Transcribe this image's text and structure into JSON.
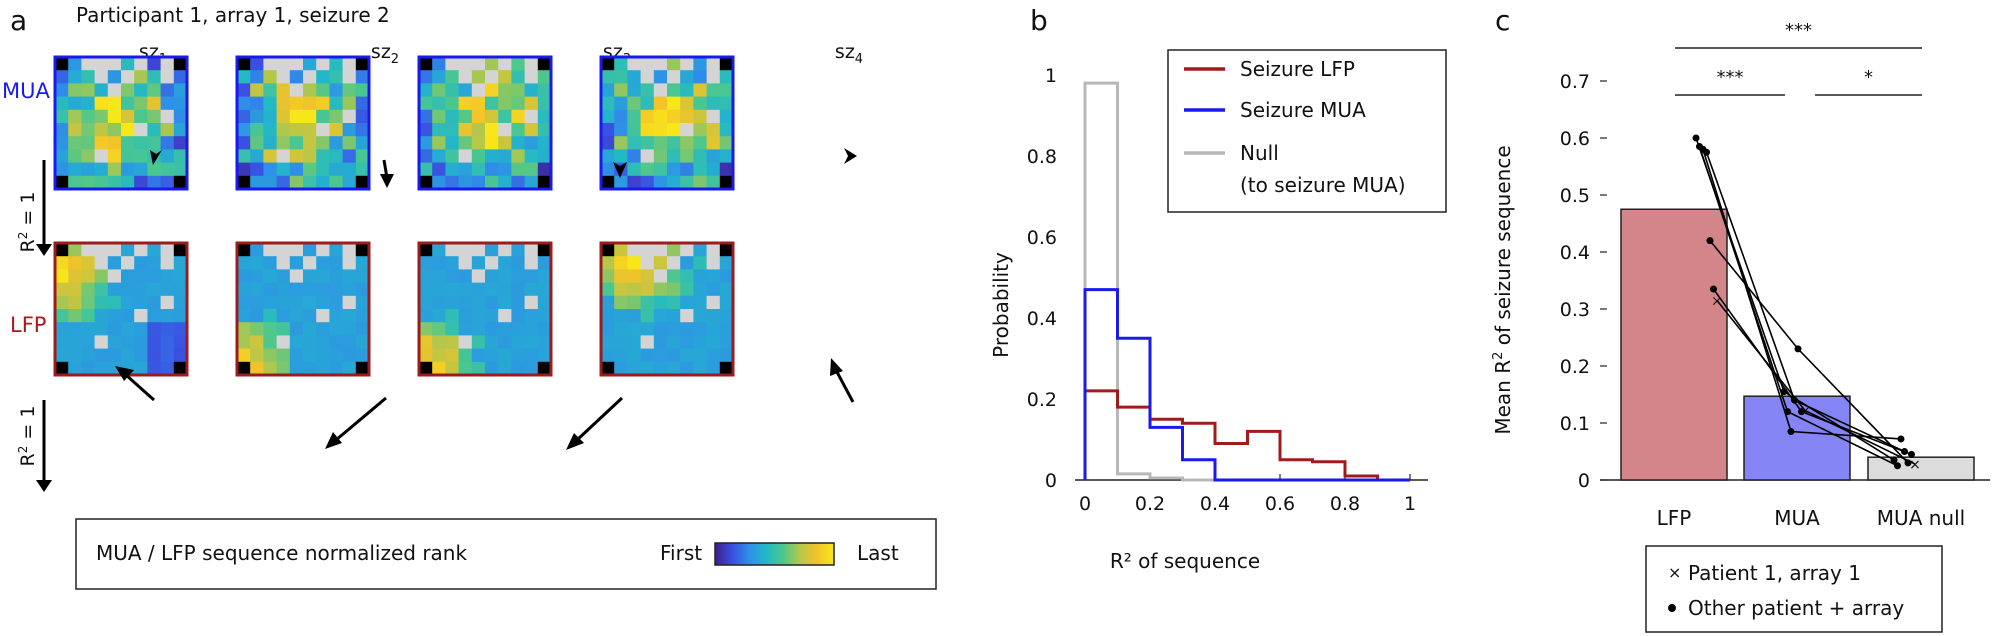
{
  "panel_a": {
    "letter": "a",
    "title": "Participant 1, array 1, seizure 2",
    "columns": [
      {
        "base": "sz",
        "sub": "1"
      },
      {
        "base": "sz",
        "sub": "2"
      },
      {
        "base": "sz",
        "sub": "3"
      },
      {
        "base": "sz",
        "sub": "4"
      }
    ],
    "rows": [
      {
        "label": "MUA",
        "color": "#1a1aee",
        "frame_color": "#1a1aee"
      },
      {
        "label": "LFP",
        "color": "#aa1a1a",
        "frame_color": "#9a1c1c"
      }
    ],
    "r2_label": "R",
    "r2_sup": "2",
    "r2_value": " = 1",
    "colorbar": {
      "label": "MUA / LFP sequence normalized rank",
      "first": "First",
      "last": "Last",
      "stops": [
        "#3d1e8a",
        "#3a4fe0",
        "#2f8ee8",
        "#22b8c8",
        "#4cc78d",
        "#b6c748",
        "#f2c32a",
        "#f7e71a"
      ]
    },
    "null_color": "#d4d4d4",
    "corner_color": "#000000"
  },
  "panel_b": {
    "letter": "b",
    "chart_data": {
      "type": "histogram",
      "xlabel": "R² of sequence",
      "ylabel": "Probability",
      "xlim": [
        0,
        1
      ],
      "ylim": [
        0,
        1
      ],
      "xticks": [
        "0",
        "0.2",
        "0.4",
        "0.6",
        "0.8",
        "1"
      ],
      "yticks": [
        "0",
        "0.2",
        "0.4",
        "0.6",
        "0.8",
        "1"
      ],
      "bin_edges": [
        0,
        0.1,
        0.2,
        0.3,
        0.4,
        0.5,
        0.6,
        0.7,
        0.8,
        0.9,
        1.0
      ],
      "series": [
        {
          "name": "Seizure LFP",
          "color": "#a01c1c",
          "values": [
            0.22,
            0.18,
            0.15,
            0.14,
            0.09,
            0.12,
            0.05,
            0.045,
            0.01,
            0.0
          ]
        },
        {
          "name": "Seizure MUA",
          "color": "#1a1aee",
          "values": [
            0.47,
            0.35,
            0.13,
            0.05,
            0.0,
            0.0,
            0.0,
            0.0,
            0.0,
            0.0
          ]
        },
        {
          "name": "Null",
          "name_line2": "(to seizure MUA)",
          "color": "#b8b8b8",
          "values": [
            0.98,
            0.015,
            0.005,
            0.0,
            0.0,
            0.0,
            0.0,
            0.0,
            0.0,
            0.0
          ]
        }
      ]
    }
  },
  "panel_c": {
    "letter": "c",
    "chart_data": {
      "type": "bar",
      "categories": [
        "LFP",
        "MUA",
        "MUA null"
      ],
      "values": [
        0.475,
        0.147,
        0.04
      ],
      "colors": [
        "#d4858a",
        "#8484f4",
        "#dcdcdc"
      ],
      "ylabel_pre": "Mean R",
      "ylabel_sup": "2",
      "ylabel_post": " of seizure sequence",
      "ylim": [
        0,
        0.7
      ],
      "yticks": [
        "0",
        "0.1",
        "0.2",
        "0.3",
        "0.4",
        "0.5",
        "0.6",
        "0.7"
      ],
      "lines": [
        {
          "values": [
            0.6,
            0.155,
            0.035
          ]
        },
        {
          "values": [
            0.585,
            0.12,
            0.025
          ]
        },
        {
          "values": [
            0.58,
            0.085,
            0.072
          ]
        },
        {
          "values": [
            0.575,
            0.14,
            0.05
          ]
        },
        {
          "values": [
            0.42,
            0.23,
            0.03
          ]
        },
        {
          "values": [
            0.335,
            0.12,
            0.045
          ]
        },
        {
          "values": [
            0.315,
            0.122,
            0.028
          ],
          "highlight": true
        }
      ],
      "significance": [
        {
          "from": 0,
          "to": 2,
          "label": "***"
        },
        {
          "from": 0,
          "to": 1,
          "label": "***"
        },
        {
          "from": 1,
          "to": 2,
          "label": "*"
        }
      ],
      "legend": [
        {
          "marker": "×",
          "label": "Patient 1, array 1"
        },
        {
          "marker": "•",
          "label": "Other patient + array"
        }
      ]
    }
  }
}
